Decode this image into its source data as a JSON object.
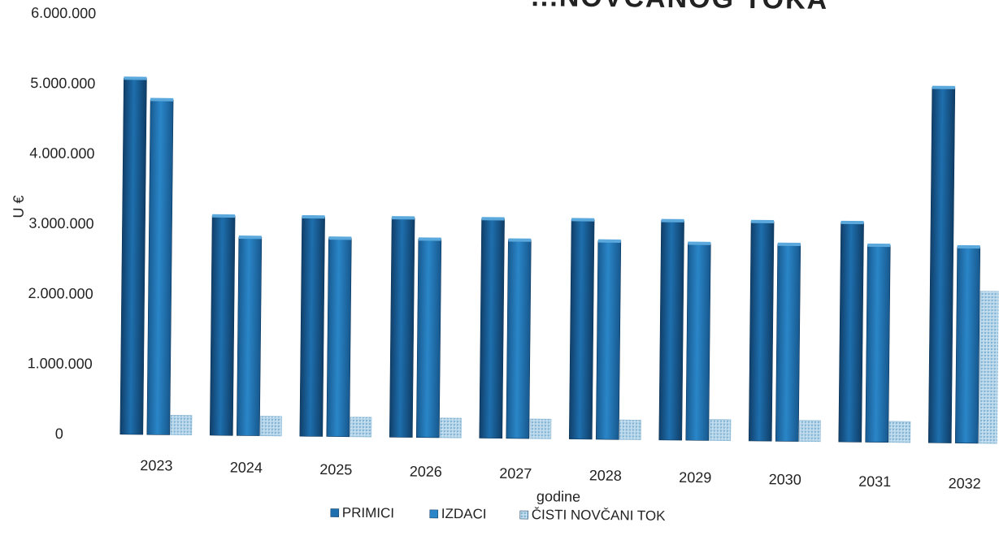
{
  "chart_data": {
    "type": "bar",
    "title": "...NOVČANOG TOKA",
    "xlabel": "godine",
    "ylabel": "U €",
    "ylim": [
      0,
      6000000
    ],
    "yticks": [
      0,
      1000000,
      2000000,
      3000000,
      4000000,
      5000000,
      6000000
    ],
    "ytick_labels": [
      "0",
      "1.000.000",
      "2.000.000",
      "3.000.000",
      "4.000.000",
      "5.000.000",
      "6.000.000"
    ],
    "categories": [
      "2023",
      "2024",
      "2025",
      "2026",
      "2027",
      "2028",
      "2029",
      "2030",
      "2031",
      "2032"
    ],
    "series": [
      {
        "name": "PRIMICI",
        "color": "#1e6fae",
        "values": [
          5080000,
          3130000,
          3130000,
          3130000,
          3130000,
          3130000,
          3130000,
          3130000,
          3130000,
          5070000
        ]
      },
      {
        "name": "IZDACI",
        "color": "#2a86c8",
        "values": [
          4780000,
          2830000,
          2830000,
          2830000,
          2830000,
          2830000,
          2810000,
          2810000,
          2810000,
          2800000
        ]
      },
      {
        "name": "ČISTI NOVČANI TOK",
        "color": "#9cc6de",
        "values": [
          280000,
          280000,
          280000,
          280000,
          280000,
          280000,
          300000,
          300000,
          300000,
          2170000
        ]
      }
    ],
    "legend_position": "bottom",
    "grid": false
  }
}
